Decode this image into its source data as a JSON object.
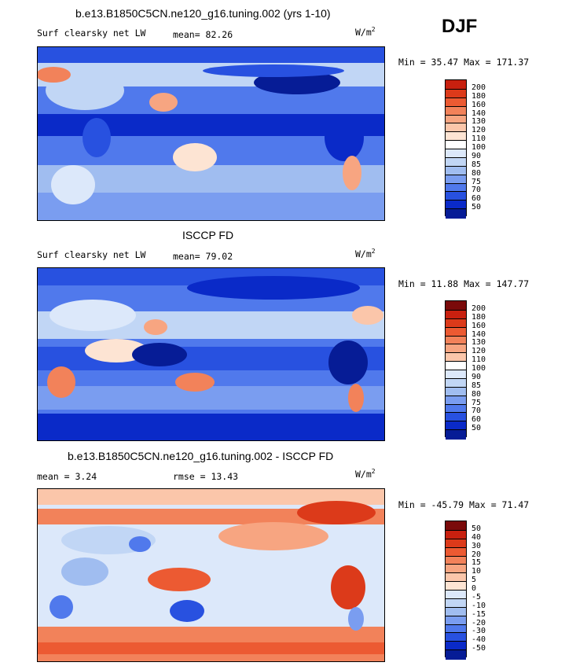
{
  "season": "DJF",
  "panels": [
    {
      "title": "b.e13.B1850C5CN.ne120_g16.tuning.002 (yrs 1-10)",
      "left_label": "Surf clearsky net LW",
      "center_label": "mean=  82.26",
      "units_base": "W/m",
      "units_exp": "2",
      "minmax": "Min =  35.47 Max = 171.37",
      "colorbar_ticks": [
        "200",
        "180",
        "160",
        "140",
        "130",
        "120",
        "110",
        "100",
        "90",
        "85",
        "80",
        "75",
        "70",
        "60",
        "50"
      ],
      "colorbar_colors": [
        "#c8200f",
        "#dc3a1a",
        "#ec5a32",
        "#f2825a",
        "#f7a581",
        "#fbc6aa",
        "#fde4d3",
        "#ffffff",
        "#dce8fa",
        "#c1d6f5",
        "#a0bdf0",
        "#7a9df0",
        "#5079ec",
        "#2851e0",
        "#0a2ac8",
        "#061c96"
      ]
    },
    {
      "title": "ISCCP FD",
      "left_label": "Surf clearsky net LW",
      "center_label": "mean=  79.02",
      "units_base": "W/m",
      "units_exp": "2",
      "minmax": "Min =  11.88 Max = 147.77",
      "colorbar_ticks": [
        "200",
        "180",
        "160",
        "140",
        "130",
        "120",
        "110",
        "100",
        "90",
        "85",
        "80",
        "75",
        "70",
        "60",
        "50"
      ],
      "colorbar_colors": [
        "#7a0a0a",
        "#c8200f",
        "#dc3a1a",
        "#ec5a32",
        "#f2825a",
        "#f7a581",
        "#fbc6aa",
        "#ffffff",
        "#dce8fa",
        "#c1d6f5",
        "#a0bdf0",
        "#7a9df0",
        "#5079ec",
        "#2851e0",
        "#0a2ac8",
        "#061c96"
      ]
    },
    {
      "title": "b.e13.B1850C5CN.ne120_g16.tuning.002 - ISCCP FD",
      "left_label": "mean =    3.24",
      "center_label": "rmse =   13.43",
      "units_base": "W/m",
      "units_exp": "2",
      "minmax": "Min = -45.79 Max =  71.47",
      "colorbar_ticks": [
        "50",
        "40",
        "30",
        "20",
        "15",
        "10",
        "5",
        "0",
        "-5",
        "-10",
        "-15",
        "-20",
        "-30",
        "-40",
        "-50"
      ],
      "colorbar_colors": [
        "#7a0a0a",
        "#c8200f",
        "#dc3a1a",
        "#ec5a32",
        "#f2825a",
        "#f7a581",
        "#fbc6aa",
        "#fde4d3",
        "#dce8fa",
        "#c1d6f5",
        "#a0bdf0",
        "#7a9df0",
        "#5079ec",
        "#2851e0",
        "#0a2ac8",
        "#061c96"
      ]
    }
  ],
  "chart_data": [
    {
      "type": "heatmap",
      "title": "b.e13.B1850C5CN.ne120_g16.tuning.002 (yrs 1-10)",
      "variable": "Surf clearsky net LW",
      "units": "W/m2",
      "mean": 82.26,
      "min": 35.47,
      "max": 171.37,
      "contour_levels": [
        50,
        60,
        70,
        75,
        80,
        85,
        90,
        100,
        110,
        120,
        130,
        140,
        160,
        180,
        200
      ]
    },
    {
      "type": "heatmap",
      "title": "ISCCP FD",
      "variable": "Surf clearsky net LW",
      "units": "W/m2",
      "mean": 79.02,
      "min": 11.88,
      "max": 147.77,
      "contour_levels": [
        50,
        60,
        70,
        75,
        80,
        85,
        90,
        100,
        110,
        120,
        130,
        140,
        160,
        180,
        200
      ]
    },
    {
      "type": "heatmap",
      "title": "b.e13.B1850C5CN.ne120_g16.tuning.002 - ISCCP FD",
      "units": "W/m2",
      "mean": 3.24,
      "rmse": 13.43,
      "min": -45.79,
      "max": 71.47,
      "contour_levels": [
        -50,
        -40,
        -30,
        -20,
        -15,
        -10,
        -5,
        0,
        5,
        10,
        15,
        20,
        30,
        40,
        50
      ]
    }
  ]
}
